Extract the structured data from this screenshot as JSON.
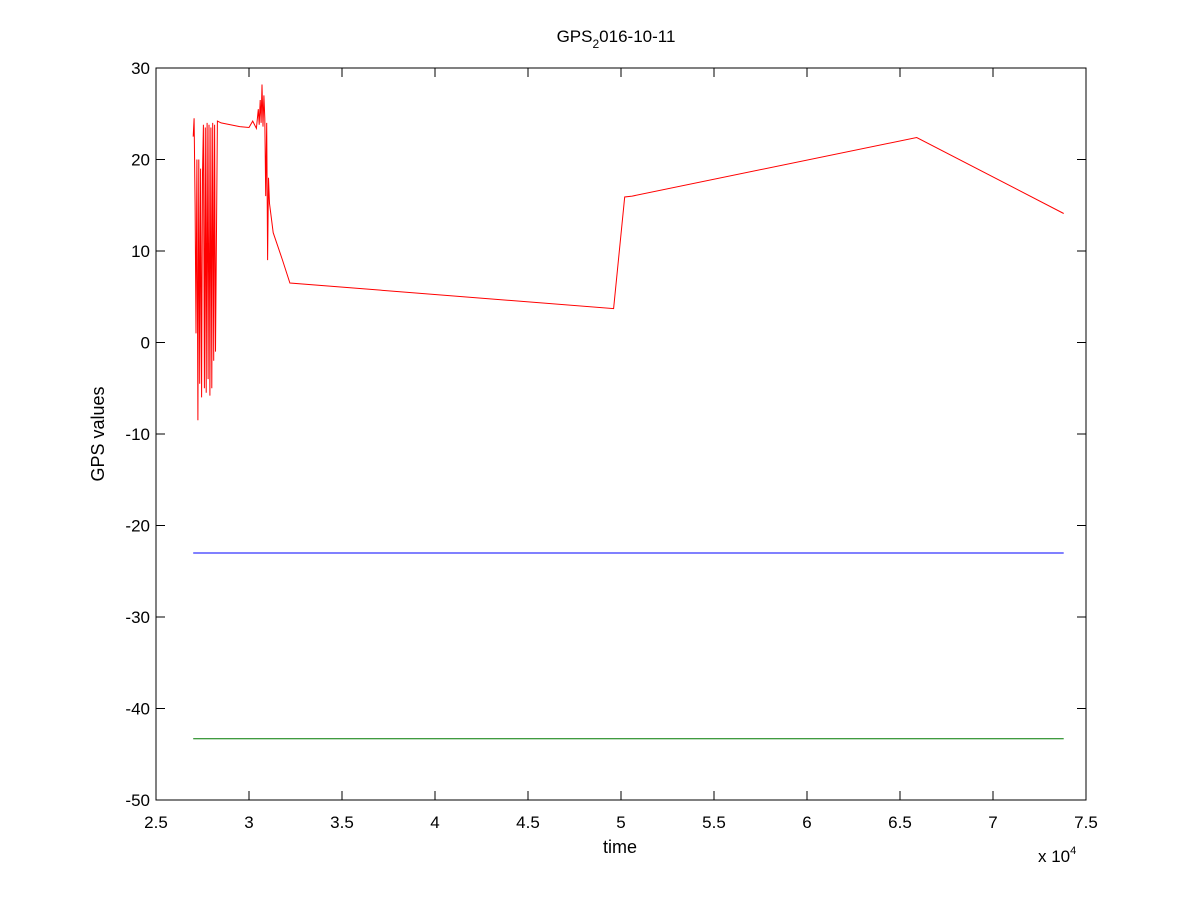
{
  "chart_data": {
    "type": "line",
    "title_main": "GPS",
    "title_sub": "2",
    "title_rest": "016-10-11",
    "xlabel": "time",
    "ylabel": "GPS values",
    "x_multiplier_base": "x 10",
    "x_multiplier_exp": "4",
    "xlim": [
      2.5,
      7.5
    ],
    "ylim": [
      -50,
      30
    ],
    "xticks": [
      2.5,
      3,
      3.5,
      4,
      4.5,
      5,
      5.5,
      6,
      6.5,
      7,
      7.5
    ],
    "xtick_labels": [
      "2.5",
      "3",
      "3.5",
      "4",
      "4.5",
      "5",
      "5.5",
      "6",
      "6.5",
      "7",
      "7.5"
    ],
    "yticks": [
      30,
      20,
      10,
      0,
      -10,
      -20,
      -30,
      -40,
      -50
    ],
    "ytick_labels": [
      "30",
      "20",
      "10",
      "0",
      "-10",
      "-20",
      "-30",
      "-40",
      "-50"
    ],
    "grid": false,
    "series": [
      {
        "color": "#ff0000",
        "x": [
          2.7,
          2.705,
          2.71,
          2.715,
          2.72,
          2.725,
          2.73,
          2.735,
          2.74,
          2.745,
          2.75,
          2.755,
          2.76,
          2.765,
          2.77,
          2.775,
          2.78,
          2.785,
          2.79,
          2.795,
          2.8,
          2.805,
          2.81,
          2.815,
          2.82,
          2.83,
          2.85,
          2.9,
          2.95,
          3.0,
          3.02,
          3.04,
          3.05,
          3.055,
          3.06,
          3.065,
          3.07,
          3.075,
          3.08,
          3.085,
          3.09,
          3.095,
          3.1,
          3.105,
          3.11,
          3.13,
          3.18,
          3.22,
          4.96,
          5.02,
          5.06,
          6.59,
          7.38
        ],
        "y": [
          22.5,
          24.5,
          15,
          1,
          20,
          -8.5,
          20,
          -4.5,
          19,
          -6,
          18.5,
          23.8,
          -5,
          23.5,
          -5.5,
          24,
          -4,
          23.8,
          -5.8,
          23.5,
          -5,
          24,
          -2,
          23.8,
          -1,
          24.2,
          24.0,
          23.8,
          23.6,
          23.5,
          24.2,
          23.4,
          25.5,
          23.8,
          26.5,
          24.0,
          28.2,
          23.6,
          27.0,
          24.5,
          16,
          24,
          9,
          18,
          15.2,
          12,
          9,
          6.5,
          3.7,
          15.9,
          16.0,
          22.4,
          14.1
        ]
      },
      {
        "color": "#0000ff",
        "x": [
          2.7,
          7.38
        ],
        "y": [
          -23,
          -23
        ]
      },
      {
        "color": "#007a00",
        "x": [
          2.7,
          7.38
        ],
        "y": [
          -43.3,
          -43.3
        ]
      }
    ]
  }
}
